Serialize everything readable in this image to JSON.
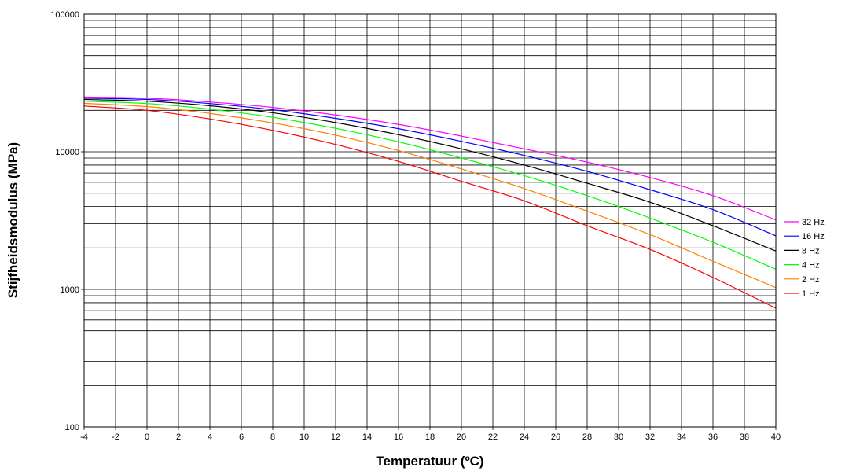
{
  "chart_data": {
    "type": "line",
    "title": "",
    "xlabel": "Temperatuur (ºC)",
    "ylabel": "Stijfheidsmodulus (MPa)",
    "xlim": [
      -4,
      40
    ],
    "ylim": [
      100,
      100000
    ],
    "yscale": "log",
    "grid": true,
    "legend_position": "right",
    "x_ticks": [
      "-4",
      "-2",
      "0",
      "2",
      "4",
      "6",
      "8",
      "10",
      "12",
      "14",
      "16",
      "18",
      "20",
      "22",
      "24",
      "26",
      "28",
      "30",
      "32",
      "34",
      "36",
      "38",
      "40"
    ],
    "y_ticks": [
      "100",
      "1000",
      "10000",
      "100000"
    ],
    "x": [
      -4,
      0,
      4,
      8,
      12,
      16,
      20,
      24,
      28,
      32,
      36,
      40
    ],
    "series": [
      {
        "name": "32 Hz",
        "color": "#ff00ff",
        "values": [
          25000,
          24500,
          23000,
          21000,
          18500,
          15800,
          13000,
          10500,
          8400,
          6500,
          4800,
          3200
        ]
      },
      {
        "name": "16 Hz",
        "color": "#0000ff",
        "values": [
          24500,
          24000,
          22400,
          20200,
          17500,
          14700,
          11900,
          9400,
          7200,
          5300,
          3800,
          2450
        ]
      },
      {
        "name": "8 Hz",
        "color": "#000000",
        "values": [
          24000,
          23300,
          21600,
          19200,
          16300,
          13300,
          10500,
          8000,
          5900,
          4300,
          2900,
          1900
        ]
      },
      {
        "name": "4 Hz",
        "color": "#00ff00",
        "values": [
          23300,
          22400,
          20400,
          17800,
          14800,
          11800,
          9000,
          6700,
          4800,
          3300,
          2200,
          1400
        ]
      },
      {
        "name": "2 Hz",
        "color": "#ff8000",
        "values": [
          22500,
          21300,
          19000,
          16200,
          13200,
          10200,
          7500,
          5400,
          3700,
          2500,
          1600,
          1030
        ]
      },
      {
        "name": "1 Hz",
        "color": "#ff0000",
        "values": [
          21500,
          20000,
          17300,
          14300,
          11300,
          8500,
          6100,
          4400,
          2900,
          1950,
          1220,
          730
        ]
      }
    ]
  }
}
